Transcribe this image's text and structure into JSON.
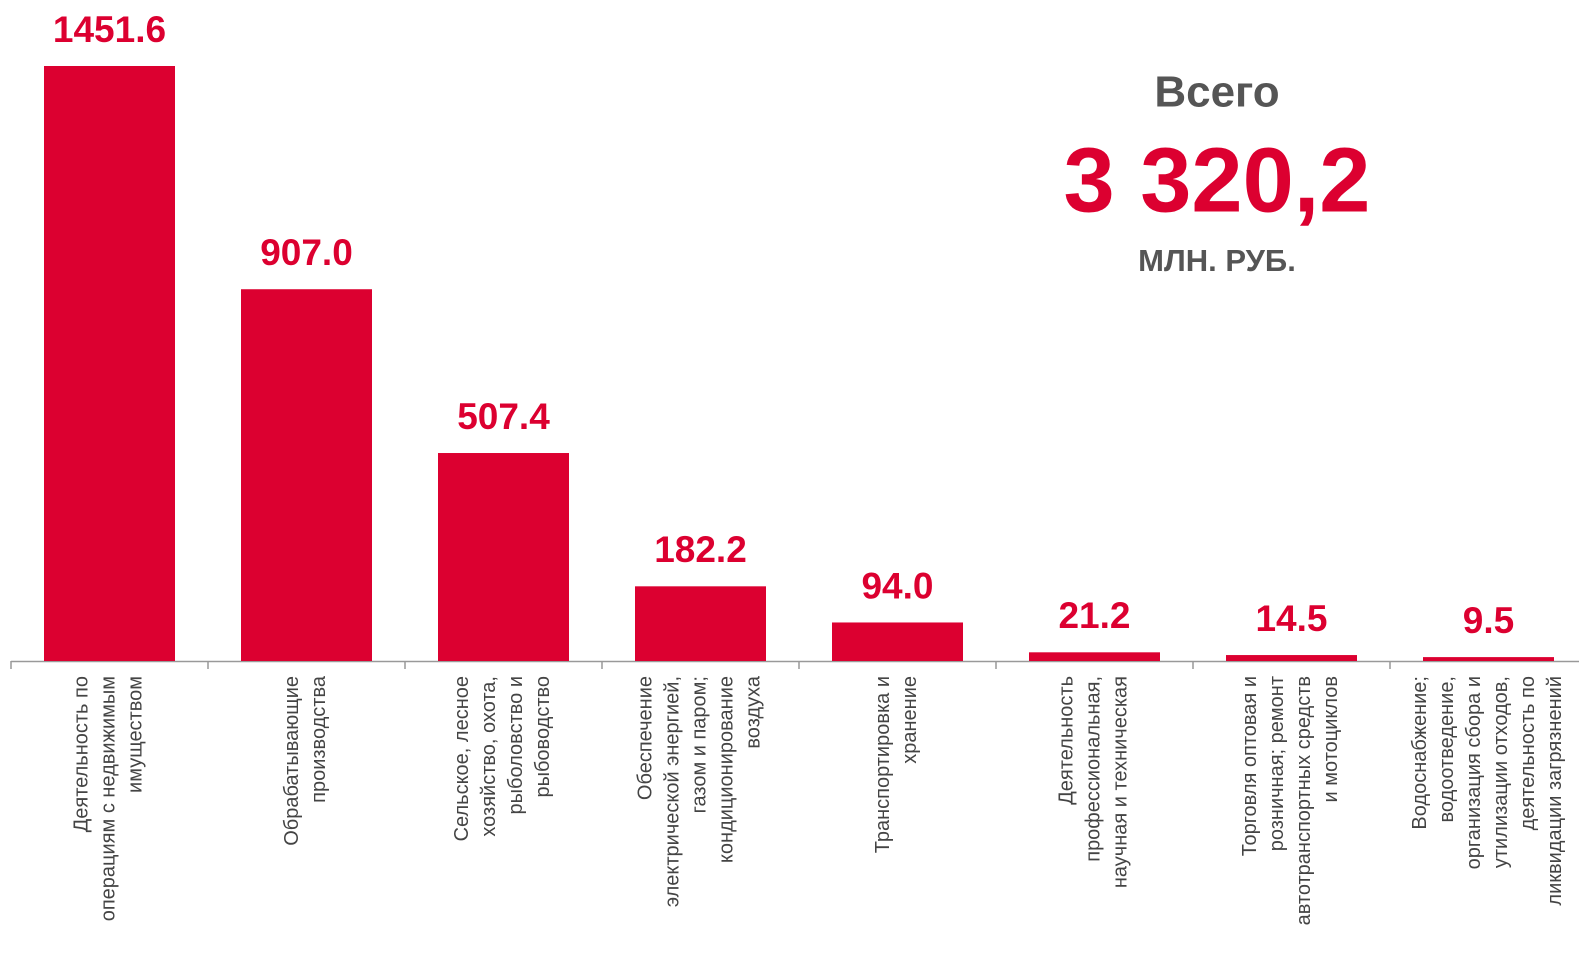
{
  "chart_data": {
    "type": "bar",
    "categories": [
      "Деятельность по\nоперациям с недвижимым\nимуществом",
      "Обрабатывающие\nпроизводства",
      "Сельское, лесное\nхозяйство, охота,\nрыболовство и\nрыбоводство",
      "Обеспечение\nэлектрической энергией,\nгазом и паром;\nкондиционирование\nвоздуха",
      "Транспортировка и\nхранение",
      "Деятельность\nпрофессиональная,\nнаучная и техническая",
      "Торговля оптовая и\nрозничная; ремонт\nавтотранспортных средств\nи мотоциклов",
      "Водоснабжение;\nводоотведение,\nорганизация сбора и\nутилизации отходов,\nдеятельность по\nликвидации загрязнений"
    ],
    "values": [
      1451.6,
      907.0,
      507.4,
      182.2,
      94.0,
      21.2,
      14.5,
      9.5
    ],
    "value_labels": [
      "1451.6",
      "907.0",
      "507.4",
      "182.2",
      "94.0",
      "21.2",
      "14.5",
      "9.5"
    ],
    "color": "#dc0030",
    "ylim": [
      0,
      1451.6
    ],
    "annotations": [
      "Всего",
      "3 320,2",
      "МЛН. РУБ."
    ]
  }
}
